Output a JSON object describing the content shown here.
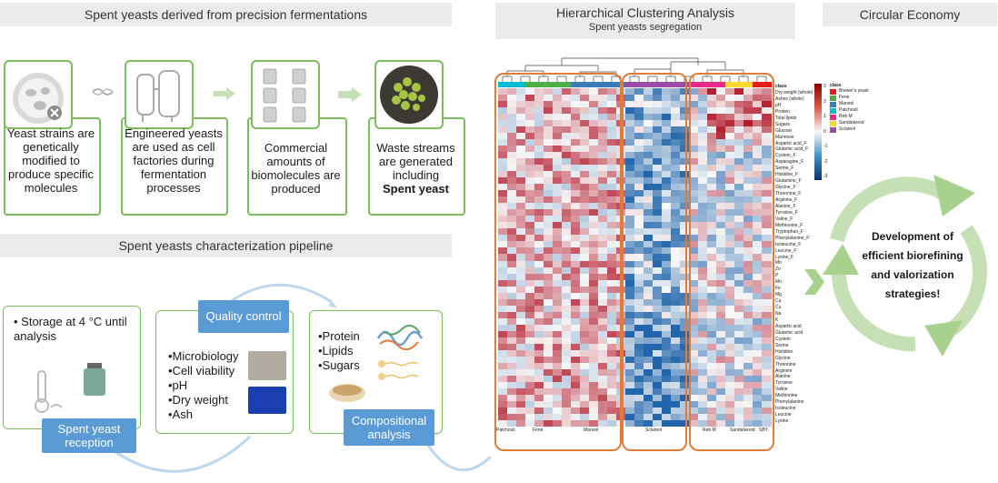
{
  "sections": {
    "top_left": "Spent yeasts derived from precision fermentations",
    "pipeline": "Spent yeasts characterization pipeline",
    "hca_title": "Hierarchical Clustering Analysis",
    "hca_subtitle": "Spent yeasts segregation",
    "circular": "Circular Economy"
  },
  "steps": [
    {
      "text": "Yeast strains are genetically modified to produce specific molecules"
    },
    {
      "text": "Engineered yeasts are used as cell factories during fermentation processes"
    },
    {
      "text": "Commercial amounts of biomolecules are produced"
    },
    {
      "text_prefix": "Waste streams are generated including",
      "text_bold": "Spent yeast"
    }
  ],
  "pipeline": {
    "storage": "• Storage at 4 °C until analysis",
    "reception": "Spent yeast reception",
    "quality_control": "Quality control",
    "qc_items": [
      "•Microbiology",
      "•Cell viability",
      "•pH",
      "•Dry weight",
      "•Ash"
    ],
    "comp_items": [
      "•Protein",
      "•Lipids",
      "•Sugars"
    ],
    "compositional": "Compositional analysis"
  },
  "circular_text": "Development of efficient biorefining and valorization strategies!",
  "heatmap": {
    "row_labels": [
      "class",
      "Dry weight (whole)",
      "Ashes (whole)",
      "pH",
      "Protein",
      "Total lipids",
      "Sugars",
      "Glucose",
      "Mannose",
      "Aspartic acid_F",
      "Glutamic acid_F",
      "Cystein_F",
      "Asparagine_F",
      "Serine_F",
      "Histidine_F",
      "Glutamine_F",
      "Glycine_F",
      "Threonine_F",
      "Arginine_F",
      "Alanine_F",
      "Tyrosine_F",
      "Valine_F",
      "Methionine_F",
      "Tryptophan_F",
      "Phenylalanine_F",
      "Isoleucine_F",
      "Leucine_F",
      "Lysine_F",
      "Mo",
      "Zn",
      "P",
      "Mn",
      "Fe",
      "Mg",
      "Ca",
      "Cu",
      "Na",
      "K",
      "Aspartic acid",
      "Glutamic acid",
      "Cystein",
      "Serine",
      "Histidine",
      "Glycine",
      "Threonine",
      "Arginine",
      "Alanine",
      "Tyrosine",
      "Valine",
      "Methionine",
      "Phenylalanine",
      "Isoleucine",
      "Leucine",
      "Lysine"
    ],
    "column_groups": [
      "Patchouli",
      "Fene",
      "Manool",
      "Sclareol",
      "Reb M",
      "Sandalwood",
      "SBY"
    ],
    "color_scale": {
      "title": "",
      "ticks": [
        "3",
        "2",
        "1",
        "0",
        "-1",
        "-2",
        "-3"
      ],
      "high": "#b2182b",
      "mid": "#f7f7f7",
      "low": "#2166ac"
    },
    "legend": {
      "title": "class",
      "items": [
        {
          "name": "Brewer's yeast",
          "color": "#e41a1c"
        },
        {
          "name": "Fene",
          "color": "#4daf4a"
        },
        {
          "name": "Manool",
          "color": "#377eb8"
        },
        {
          "name": "Patchouli",
          "color": "#00bcd4"
        },
        {
          "name": "Reb M",
          "color": "#e7298a"
        },
        {
          "name": "Sandalwood",
          "color": "#ffd92f"
        },
        {
          "name": "Sclareol",
          "color": "#984ea3"
        }
      ]
    }
  }
}
